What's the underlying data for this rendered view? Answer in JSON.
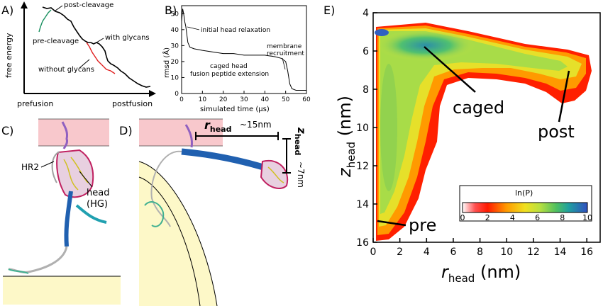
{
  "panelA": {
    "label": "A)",
    "ylabel": "free energy",
    "x_start": "prefusion",
    "x_end": "postfusion",
    "annotations": {
      "post_cleavage": "post-cleavage",
      "pre_cleavage": "pre-cleavage",
      "with_glycans": "with glycans",
      "without_glycans": "without glycans"
    }
  },
  "panelB": {
    "label": "B)",
    "ylabel": "rmsd (Å)",
    "xlabel": "simulated time (μs)",
    "yticks": [
      "0",
      "10",
      "20",
      "30",
      "40",
      "50"
    ],
    "xticks": [
      "0",
      "10",
      "20",
      "30",
      "40",
      "50",
      "60"
    ],
    "annotations": {
      "initial": "initial head relaxation",
      "caged1": "caged head",
      "caged2": "fusion peptide extension",
      "membrane1": "membrane",
      "membrane2": "recruitment"
    }
  },
  "panelC": {
    "label": "C)",
    "hr2": "HR2",
    "head1": "head",
    "head2": "(HG)"
  },
  "panelD": {
    "label": "D)",
    "rhead_r": "r",
    "rhead_sub": "head",
    "rhead_val": "~15nm",
    "zhead_z": "z",
    "zhead_sub": "head",
    "zhead_val": "~7nm"
  },
  "panelE": {
    "label": "E)",
    "xlabel_main": "r",
    "xlabel_sub": "head",
    "xlabel_unit": " (nm)",
    "ylabel_main": "z",
    "ylabel_sub": "head",
    "ylabel_unit": " (nm)",
    "xticks": [
      "0",
      "2",
      "4",
      "6",
      "8",
      "10",
      "12",
      "14",
      "16"
    ],
    "yticks": [
      "4",
      "6",
      "8",
      "10",
      "12",
      "14",
      "16"
    ],
    "labels": {
      "caged": "caged",
      "post": "post",
      "pre": "pre"
    },
    "colorbar": {
      "title": "ln(P)",
      "ticks": [
        "0",
        "2",
        "4",
        "6",
        "8",
        "10"
      ]
    }
  },
  "chart_data": [
    {
      "type": "line",
      "xlabel": "simulated time (μs)",
      "ylabel": "rmsd (Å)",
      "xlim": [
        0,
        60
      ],
      "ylim": [
        0,
        55
      ],
      "x": [
        0,
        0.5,
        1,
        1.5,
        2,
        3,
        4,
        6,
        10,
        15,
        20,
        25,
        30,
        35,
        40,
        45,
        48,
        50,
        51,
        52,
        53,
        55,
        58,
        60
      ],
      "y": [
        45,
        53,
        50,
        45,
        42,
        32,
        29,
        28,
        27,
        26,
        25,
        25,
        24,
        24,
        24,
        23,
        22,
        20,
        14,
        6,
        3,
        2,
        2,
        2
      ]
    },
    {
      "type": "heatmap",
      "xlabel": "r_head (nm)",
      "ylabel": "z_head (nm)",
      "xlim": [
        0,
        17
      ],
      "ylim": [
        16,
        4
      ],
      "colorbar": {
        "label": "ln(P)",
        "range": [
          0,
          10
        ]
      }
    }
  ]
}
